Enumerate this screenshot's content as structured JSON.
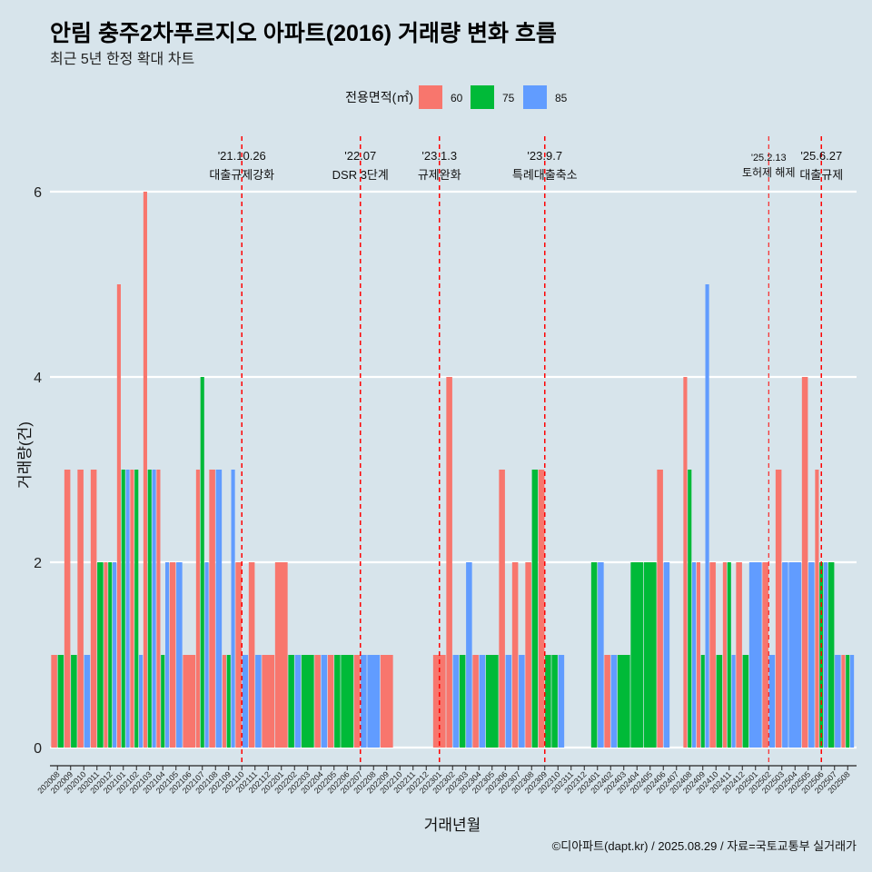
{
  "chart_data": {
    "type": "bar",
    "title": "안림 충주2차푸르지오 아파트(2016) 거래량 변화 흐름",
    "subtitle": "최근 5년 한정 확대 차트",
    "xlabel": "거래년월",
    "ylabel": "거래량(건)",
    "legend_title": "전용면적(㎡)",
    "legend_position": "top",
    "grid": true,
    "ylim": [
      0,
      6
    ],
    "yticks": [
      0,
      2,
      4,
      6
    ],
    "categories": [
      "202008",
      "202009",
      "202010",
      "202011",
      "202012",
      "202101",
      "202102",
      "202103",
      "202104",
      "202105",
      "202106",
      "202107",
      "202108",
      "202109",
      "202110",
      "202111",
      "202112",
      "202201",
      "202202",
      "202203",
      "202204",
      "202205",
      "202206",
      "202207",
      "202208",
      "202209",
      "202210",
      "202211",
      "202212",
      "202301",
      "202302",
      "202303",
      "202304",
      "202305",
      "202306",
      "202307",
      "202308",
      "202309",
      "202310",
      "202311",
      "202312",
      "202401",
      "202402",
      "202403",
      "202404",
      "202405",
      "202406",
      "202407",
      "202408",
      "202409",
      "202410",
      "202411",
      "202412",
      "202501",
      "202502",
      "202503",
      "202504",
      "202505",
      "202506",
      "202507",
      "202508"
    ],
    "series": [
      {
        "name": "60",
        "color": "#F8766D",
        "values": [
          1,
          3,
          3,
          3,
          2,
          5,
          3,
          6,
          3,
          2,
          1,
          3,
          3,
          1,
          2,
          2,
          1,
          2,
          0,
          0,
          1,
          1,
          0,
          1,
          0,
          1,
          0,
          0,
          0,
          1,
          4,
          0,
          1,
          0,
          3,
          2,
          2,
          3,
          0,
          0,
          0,
          0,
          1,
          0,
          0,
          0,
          3,
          0,
          4,
          2,
          2,
          2,
          2,
          0,
          2,
          3,
          0,
          4,
          3,
          0,
          1
        ]
      },
      {
        "name": "75",
        "color": "#00BA38",
        "values": [
          1,
          1,
          0,
          2,
          2,
          3,
          3,
          3,
          1,
          0,
          0,
          4,
          0,
          1,
          0,
          0,
          0,
          0,
          1,
          1,
          0,
          1,
          1,
          0,
          0,
          0,
          0,
          0,
          0,
          0,
          0,
          1,
          0,
          1,
          0,
          0,
          3,
          1,
          1,
          0,
          0,
          2,
          0,
          1,
          2,
          2,
          0,
          0,
          3,
          1,
          1,
          2,
          1,
          0,
          0,
          0,
          0,
          0,
          2,
          2,
          1
        ]
      },
      {
        "name": "85",
        "color": "#619CFF",
        "values": [
          0,
          0,
          1,
          0,
          2,
          3,
          1,
          3,
          2,
          2,
          0,
          2,
          3,
          3,
          1,
          1,
          0,
          0,
          1,
          0,
          1,
          0,
          0,
          1,
          1,
          0,
          0,
          0,
          0,
          0,
          1,
          2,
          1,
          0,
          1,
          1,
          0,
          0,
          1,
          0,
          0,
          2,
          1,
          0,
          0,
          0,
          2,
          0,
          2,
          5,
          0,
          1,
          0,
          2,
          1,
          2,
          2,
          2,
          2,
          1,
          1
        ]
      }
    ],
    "events": [
      {
        "date": "'21.10.26",
        "label": "대출규제강화"
      },
      {
        "date": "'22.07",
        "label": "DSR 3단계"
      },
      {
        "date": "'23.1.3",
        "label": "규제완화"
      },
      {
        "date": "'23.9.7",
        "label": "특례대출축소"
      },
      {
        "date": "'25.2.13",
        "label": "토허제 해제"
      },
      {
        "date": "'25.6.27",
        "label": "대출규제"
      }
    ],
    "caption": "©디아파트(dapt.kr) / 2025.08.29 / 자료=국토교통부 실거래가",
    "colors": {
      "background": "#D7E4EB",
      "grid": "#FFFFFF",
      "event_line": "#FF0000"
    }
  }
}
